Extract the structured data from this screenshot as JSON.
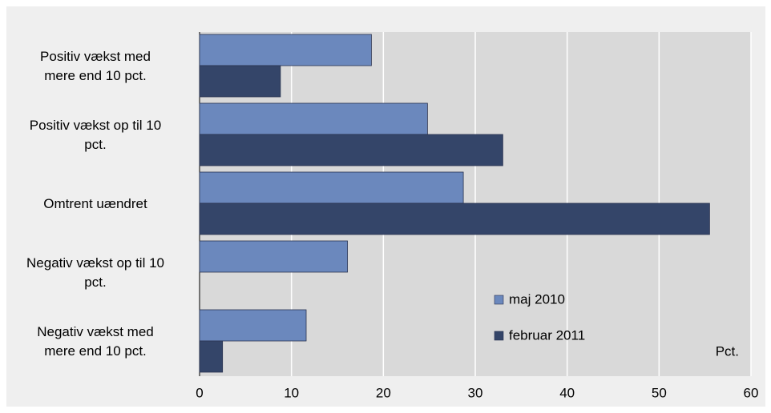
{
  "chart_data": {
    "type": "hbar",
    "categories": [
      "Positiv vækst med\nmere end 10 pct.",
      "Positiv vækst op til 10\npct.",
      "Omtrent uændret",
      "Negativ vækst op til 10\npct.",
      "Negativ vækst med\nmere end 10 pct."
    ],
    "series": [
      {
        "name": "maj 2010",
        "color": "#6b88bd",
        "values": [
          18.7,
          24.8,
          28.7,
          16.1,
          11.6
        ]
      },
      {
        "name": "februar 2011",
        "color": "#344569",
        "values": [
          8.8,
          33.0,
          55.5,
          null,
          2.5
        ]
      }
    ],
    "xlabel": "Pct.",
    "xlim": [
      0,
      60
    ],
    "xticks": [
      0,
      10,
      20,
      30,
      40,
      50,
      60
    ],
    "grid": true
  }
}
